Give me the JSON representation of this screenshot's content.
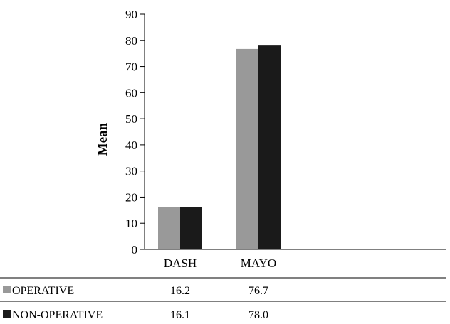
{
  "chart_data": {
    "type": "bar",
    "title": "",
    "xlabel": "",
    "ylabel": "Mean",
    "ylim": [
      0,
      90
    ],
    "ytick_step": 10,
    "grid": false,
    "categories": [
      "DASH",
      "MAYO"
    ],
    "series": [
      {
        "name": "OPERATIVE",
        "color": "#999999",
        "values": [
          16.2,
          76.7
        ],
        "value_labels": [
          "16.2",
          "76.7"
        ]
      },
      {
        "name": "NON-OPERATIVE",
        "color": "#1a1a1a",
        "values": [
          16.1,
          78.0
        ],
        "value_labels": [
          "16.1",
          "78.0"
        ]
      }
    ]
  }
}
